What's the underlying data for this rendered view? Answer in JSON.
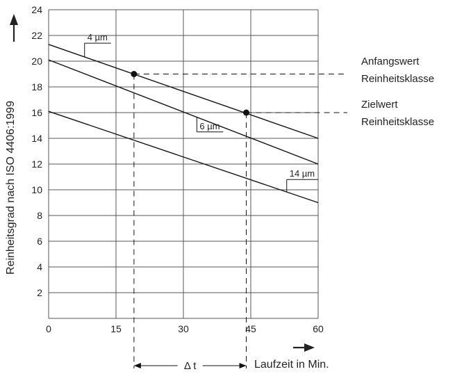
{
  "chart_data": {
    "type": "line",
    "title": "",
    "xlabel": "Laufzeit in Min.",
    "ylabel": "Reinheitsgrad nach ISO 4406:1999",
    "xlim": [
      0,
      60
    ],
    "ylim": [
      0,
      24
    ],
    "xticks": [
      "0",
      "15",
      "30",
      "45",
      "60"
    ],
    "yticks": [
      "2",
      "4",
      "6",
      "8",
      "10",
      "12",
      "14",
      "16",
      "18",
      "20",
      "22",
      "24"
    ],
    "grid": true,
    "series": [
      {
        "name": "4 µm",
        "x": [
          0,
          60
        ],
        "y": [
          21.3,
          14.0
        ],
        "label_x": 8,
        "label_y": 21.4
      },
      {
        "name": "6 µm",
        "x": [
          0,
          60
        ],
        "y": [
          20.1,
          12.0
        ],
        "label_x": 33,
        "label_y": 14.5
      },
      {
        "name": "14 µm",
        "x": [
          0,
          60
        ],
        "y": [
          16.1,
          9.0
        ],
        "label_x": 53,
        "label_y": 10.8
      }
    ],
    "points": [
      {
        "label": "Anfangswert\nReinheitsklasse",
        "x": 19,
        "y": 19
      },
      {
        "label": "Zielwert\nReinheitsklasse",
        "x": 44,
        "y": 16
      }
    ],
    "annotations": {
      "start_label_1": "Anfangswert",
      "start_label_2": "Reinheitsklasse",
      "target_label_1": "Zielwert",
      "target_label_2": "Reinheitsklasse",
      "delta_label": "Δ t"
    }
  }
}
